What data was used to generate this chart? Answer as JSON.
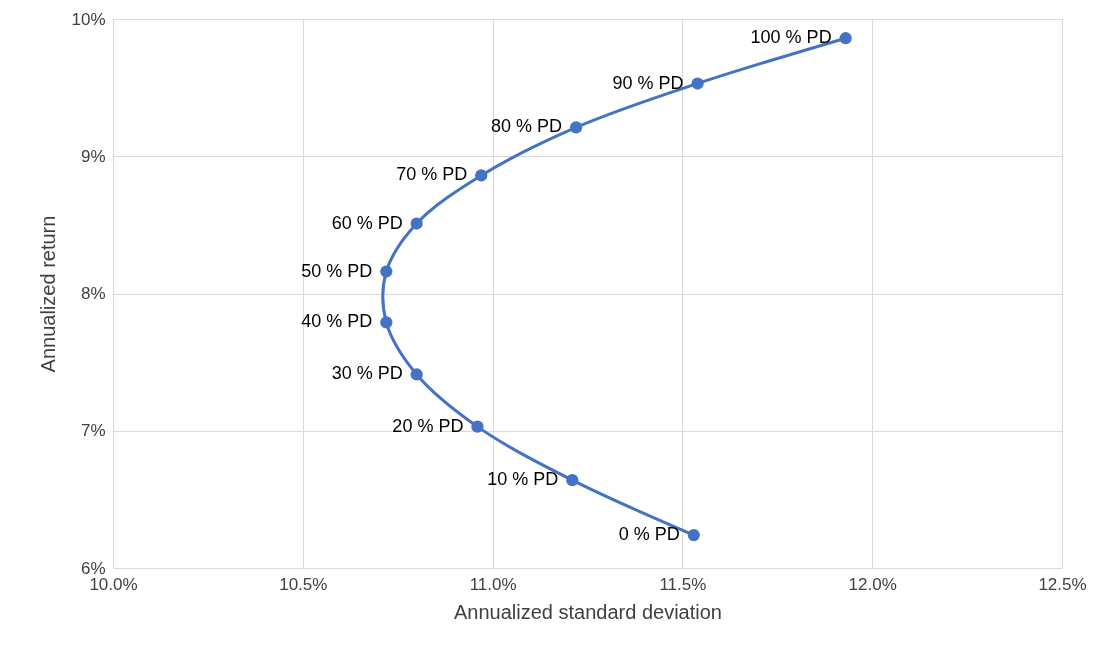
{
  "chart_data": {
    "type": "line",
    "xlabel": "Annualized standard deviation",
    "ylabel": "Annualized return",
    "x": [
      11.53,
      11.21,
      10.96,
      10.8,
      10.72,
      10.72,
      10.8,
      10.97,
      11.22,
      11.54,
      11.93
    ],
    "series": [
      {
        "color": "#4472c4",
        "values": [
          6.24,
          6.64,
          7.03,
          7.41,
          7.79,
          8.16,
          8.51,
          8.86,
          9.21,
          9.53,
          9.86
        ]
      }
    ],
    "xlim": [
      10,
      12.5
    ],
    "xticks": [
      {
        "value": 10,
        "label": "10.0%"
      },
      {
        "value": 10.5,
        "label": "10.5%"
      },
      {
        "value": 11,
        "label": "11.0%"
      },
      {
        "value": 11.5,
        "label": "11.5%"
      },
      {
        "value": 12,
        "label": "12.0%"
      },
      {
        "value": 12.5,
        "label": "12.5%"
      }
    ],
    "ylim": [
      6,
      10
    ],
    "yticks": [
      {
        "value": 6,
        "label": "6%"
      },
      {
        "value": 7,
        "label": "7%"
      },
      {
        "value": 8,
        "label": "8%"
      },
      {
        "value": 9,
        "label": "9%"
      },
      {
        "value": 10,
        "label": "10%"
      }
    ],
    "annotations": [
      {
        "text": "0 % PD",
        "x": 11.53,
        "y": 6.24
      },
      {
        "text": "10 % PD",
        "x": 11.21,
        "y": 6.64
      },
      {
        "text": "20 % PD",
        "x": 10.96,
        "y": 7.03
      },
      {
        "text": "30 % PD",
        "x": 10.8,
        "y": 7.41
      },
      {
        "text": "40 % PD",
        "x": 10.72,
        "y": 7.79
      },
      {
        "text": "50 % PD",
        "x": 10.72,
        "y": 8.16
      },
      {
        "text": "60 % PD",
        "x": 10.8,
        "y": 8.51
      },
      {
        "text": "70 % PD",
        "x": 10.97,
        "y": 8.86
      },
      {
        "text": "80 % PD",
        "x": 11.22,
        "y": 9.21
      },
      {
        "text": "90 % PD",
        "x": 11.54,
        "y": 9.53
      },
      {
        "text": "100 % PD",
        "x": 11.93,
        "y": 9.86
      }
    ],
    "grid": true,
    "marker": "circle",
    "line_style": "solid"
  }
}
